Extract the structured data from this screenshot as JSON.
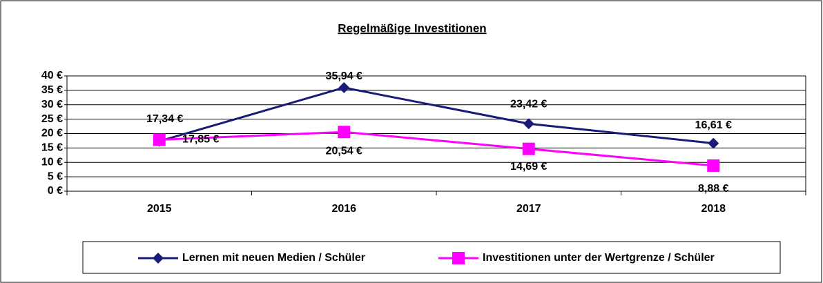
{
  "chart_data": {
    "type": "line",
    "title": "Regelmäßige Investitionen",
    "categories": [
      "2015",
      "2016",
      "2017",
      "2018"
    ],
    "series": [
      {
        "name": "Lernen mit neuen Medien / Schüler",
        "color": "#1a1a7a",
        "marker": "diamond",
        "values": [
          17.34,
          35.94,
          23.42,
          16.61
        ],
        "value_labels": [
          "17,34 €",
          "35,94 €",
          "23,42 €",
          "16,61 €"
        ]
      },
      {
        "name": "Investitionen unter der Wertgrenze / Schüler",
        "color": "#ff00ff",
        "marker": "square",
        "values": [
          17.85,
          20.54,
          14.69,
          8.88
        ],
        "value_labels": [
          "17,85 €",
          "20,54 €",
          "14,69 €",
          "8,88 €"
        ]
      }
    ],
    "ylim": [
      0,
      40
    ],
    "yticks": [
      {
        "value": 0,
        "label": "0 €"
      },
      {
        "value": 5,
        "label": "5 €"
      },
      {
        "value": 10,
        "label": "10 €"
      },
      {
        "value": 15,
        "label": "15 €"
      },
      {
        "value": 20,
        "label": "20 €"
      },
      {
        "value": 25,
        "label": "25 €"
      },
      {
        "value": 30,
        "label": "30 €"
      },
      {
        "value": 35,
        "label": "35 €"
      },
      {
        "value": 40,
        "label": "40 €"
      }
    ],
    "grid": true,
    "legend": "bottom"
  }
}
